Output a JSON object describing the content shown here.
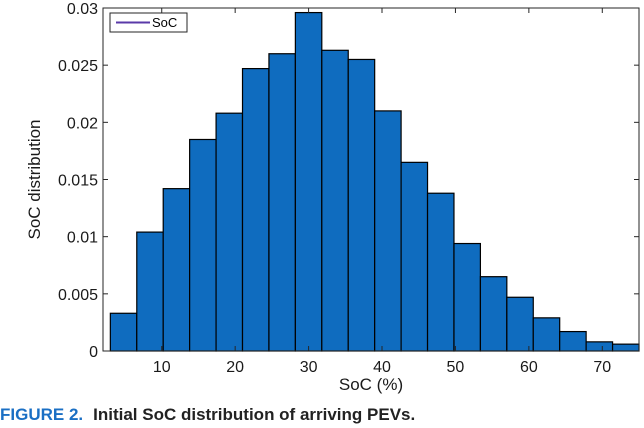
{
  "chart_data": {
    "type": "bar",
    "xlabel": "SoC (%)",
    "ylabel": "SoC distribution",
    "xlim": [
      2,
      75
    ],
    "ylim": [
      0,
      0.03
    ],
    "xticks": [
      10,
      20,
      30,
      40,
      50,
      60,
      70
    ],
    "yticks": [
      0,
      0.005,
      0.01,
      0.015,
      0.02,
      0.025,
      0.03
    ],
    "ytick_labels": [
      "0",
      "0.005",
      "0.01",
      "0.015",
      "0.02",
      "0.025",
      "0.03"
    ],
    "legend": {
      "label": "SoC",
      "position": "top-left"
    },
    "series": [
      {
        "name": "SoC",
        "color": "#0f6cbf",
        "bin_edges": [
          3,
          6.6,
          10.2,
          13.8,
          17.4,
          21,
          24.6,
          28.2,
          31.8,
          35.4,
          39,
          42.6,
          46.2,
          49.8,
          53.4,
          57,
          60.6,
          64.2,
          67.8,
          71.4,
          75
        ],
        "values": [
          0.0033,
          0.0104,
          0.0142,
          0.0185,
          0.0208,
          0.0247,
          0.026,
          0.0296,
          0.0263,
          0.0255,
          0.021,
          0.0165,
          0.0138,
          0.0094,
          0.0065,
          0.0047,
          0.0029,
          0.0017,
          0.0008,
          0.0006
        ]
      }
    ],
    "grid": false
  },
  "caption": {
    "number": "FIGURE 2.",
    "text": "Initial SoC distribution of arriving PEVs."
  }
}
